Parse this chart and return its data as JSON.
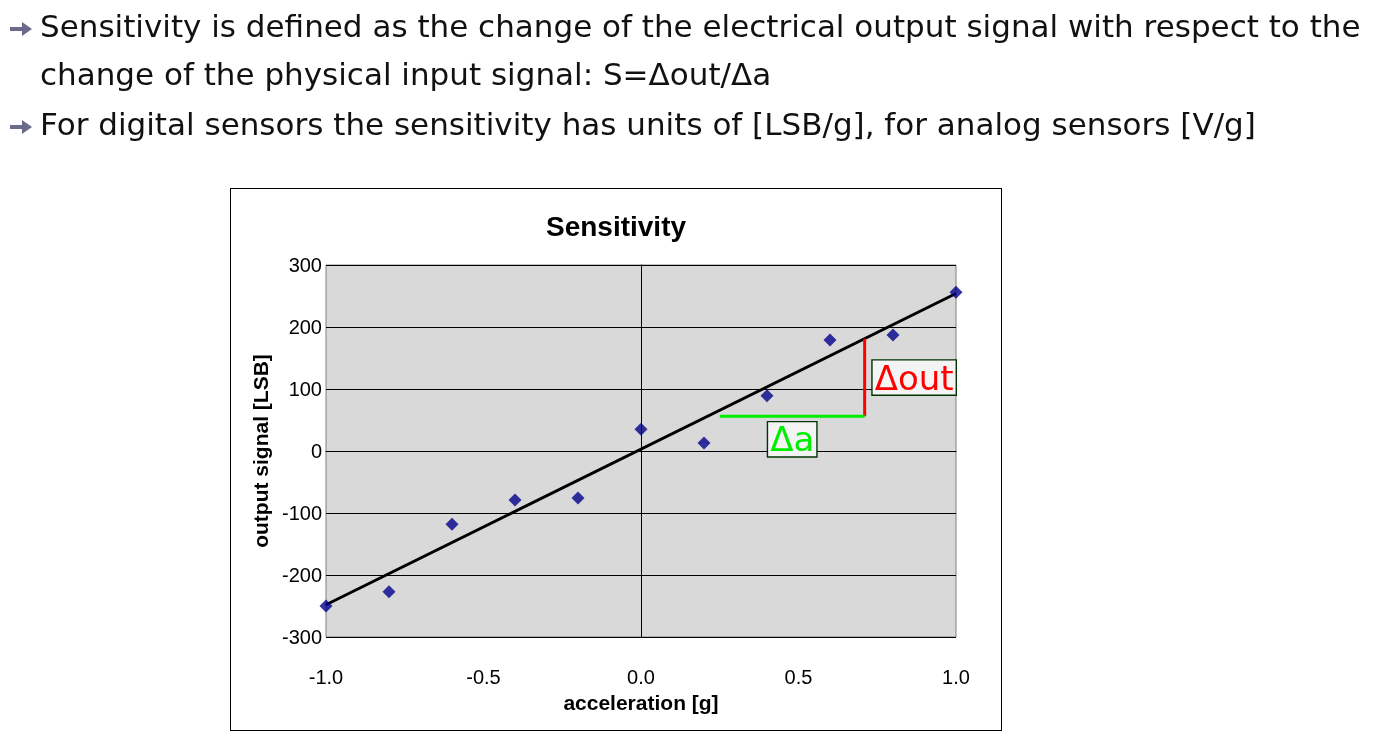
{
  "chart_data": {
    "type": "scatter",
    "title": "Sensitivity",
    "xlabel": "acceleration [g]",
    "ylabel": "output signal [LSB]",
    "annotations": [
      "Sensitivity is defined as the change of the electrical output signal with respect to the change of the physical input signal: S=Δout/Δa",
      "For digital sensors the sensitivity has units of [LSB/g], for analog sensors [V/g]",
      "Δout",
      "Δa"
    ],
    "series": [
      {
        "color": "#00008b",
        "marker": "diamond",
        "x": [
          -1.0,
          -0.8,
          -0.6,
          -0.4,
          -0.2,
          0.0,
          0.2,
          0.4,
          0.6,
          0.8,
          1.0
        ],
        "values": [
          -250,
          -227,
          -118,
          -79,
          -76,
          35,
          13,
          89,
          179,
          187,
          256
        ]
      },
      {
        "type": "line",
        "color": "#000000",
        "marker": "none",
        "x": [
          -1.0,
          1.0
        ],
        "values": [
          -248,
          254
        ]
      },
      {
        "type": "line",
        "color": "#ff0000",
        "marker": "none",
        "x": [
          0.71,
          0.71
        ],
        "values": [
          56,
          181
        ]
      },
      {
        "type": "line",
        "color": "#00ee00",
        "marker": "none",
        "x": [
          0.25,
          0.71
        ],
        "values": [
          56,
          56
        ]
      }
    ],
    "xlim": [
      -1.0,
      1.0
    ],
    "xticks": [
      {
        "value": -1.0,
        "label": "-1.0"
      },
      {
        "value": -0.5,
        "label": "-0.5"
      },
      {
        "value": 0,
        "label": "0.0"
      },
      {
        "value": 0.5,
        "label": "0.5"
      },
      {
        "value": 1.0,
        "label": "1.0"
      }
    ],
    "ylim": [
      -300,
      300
    ],
    "yticks": [
      -300,
      -200,
      -100,
      0,
      100,
      200,
      300
    ],
    "grid": "y"
  }
}
